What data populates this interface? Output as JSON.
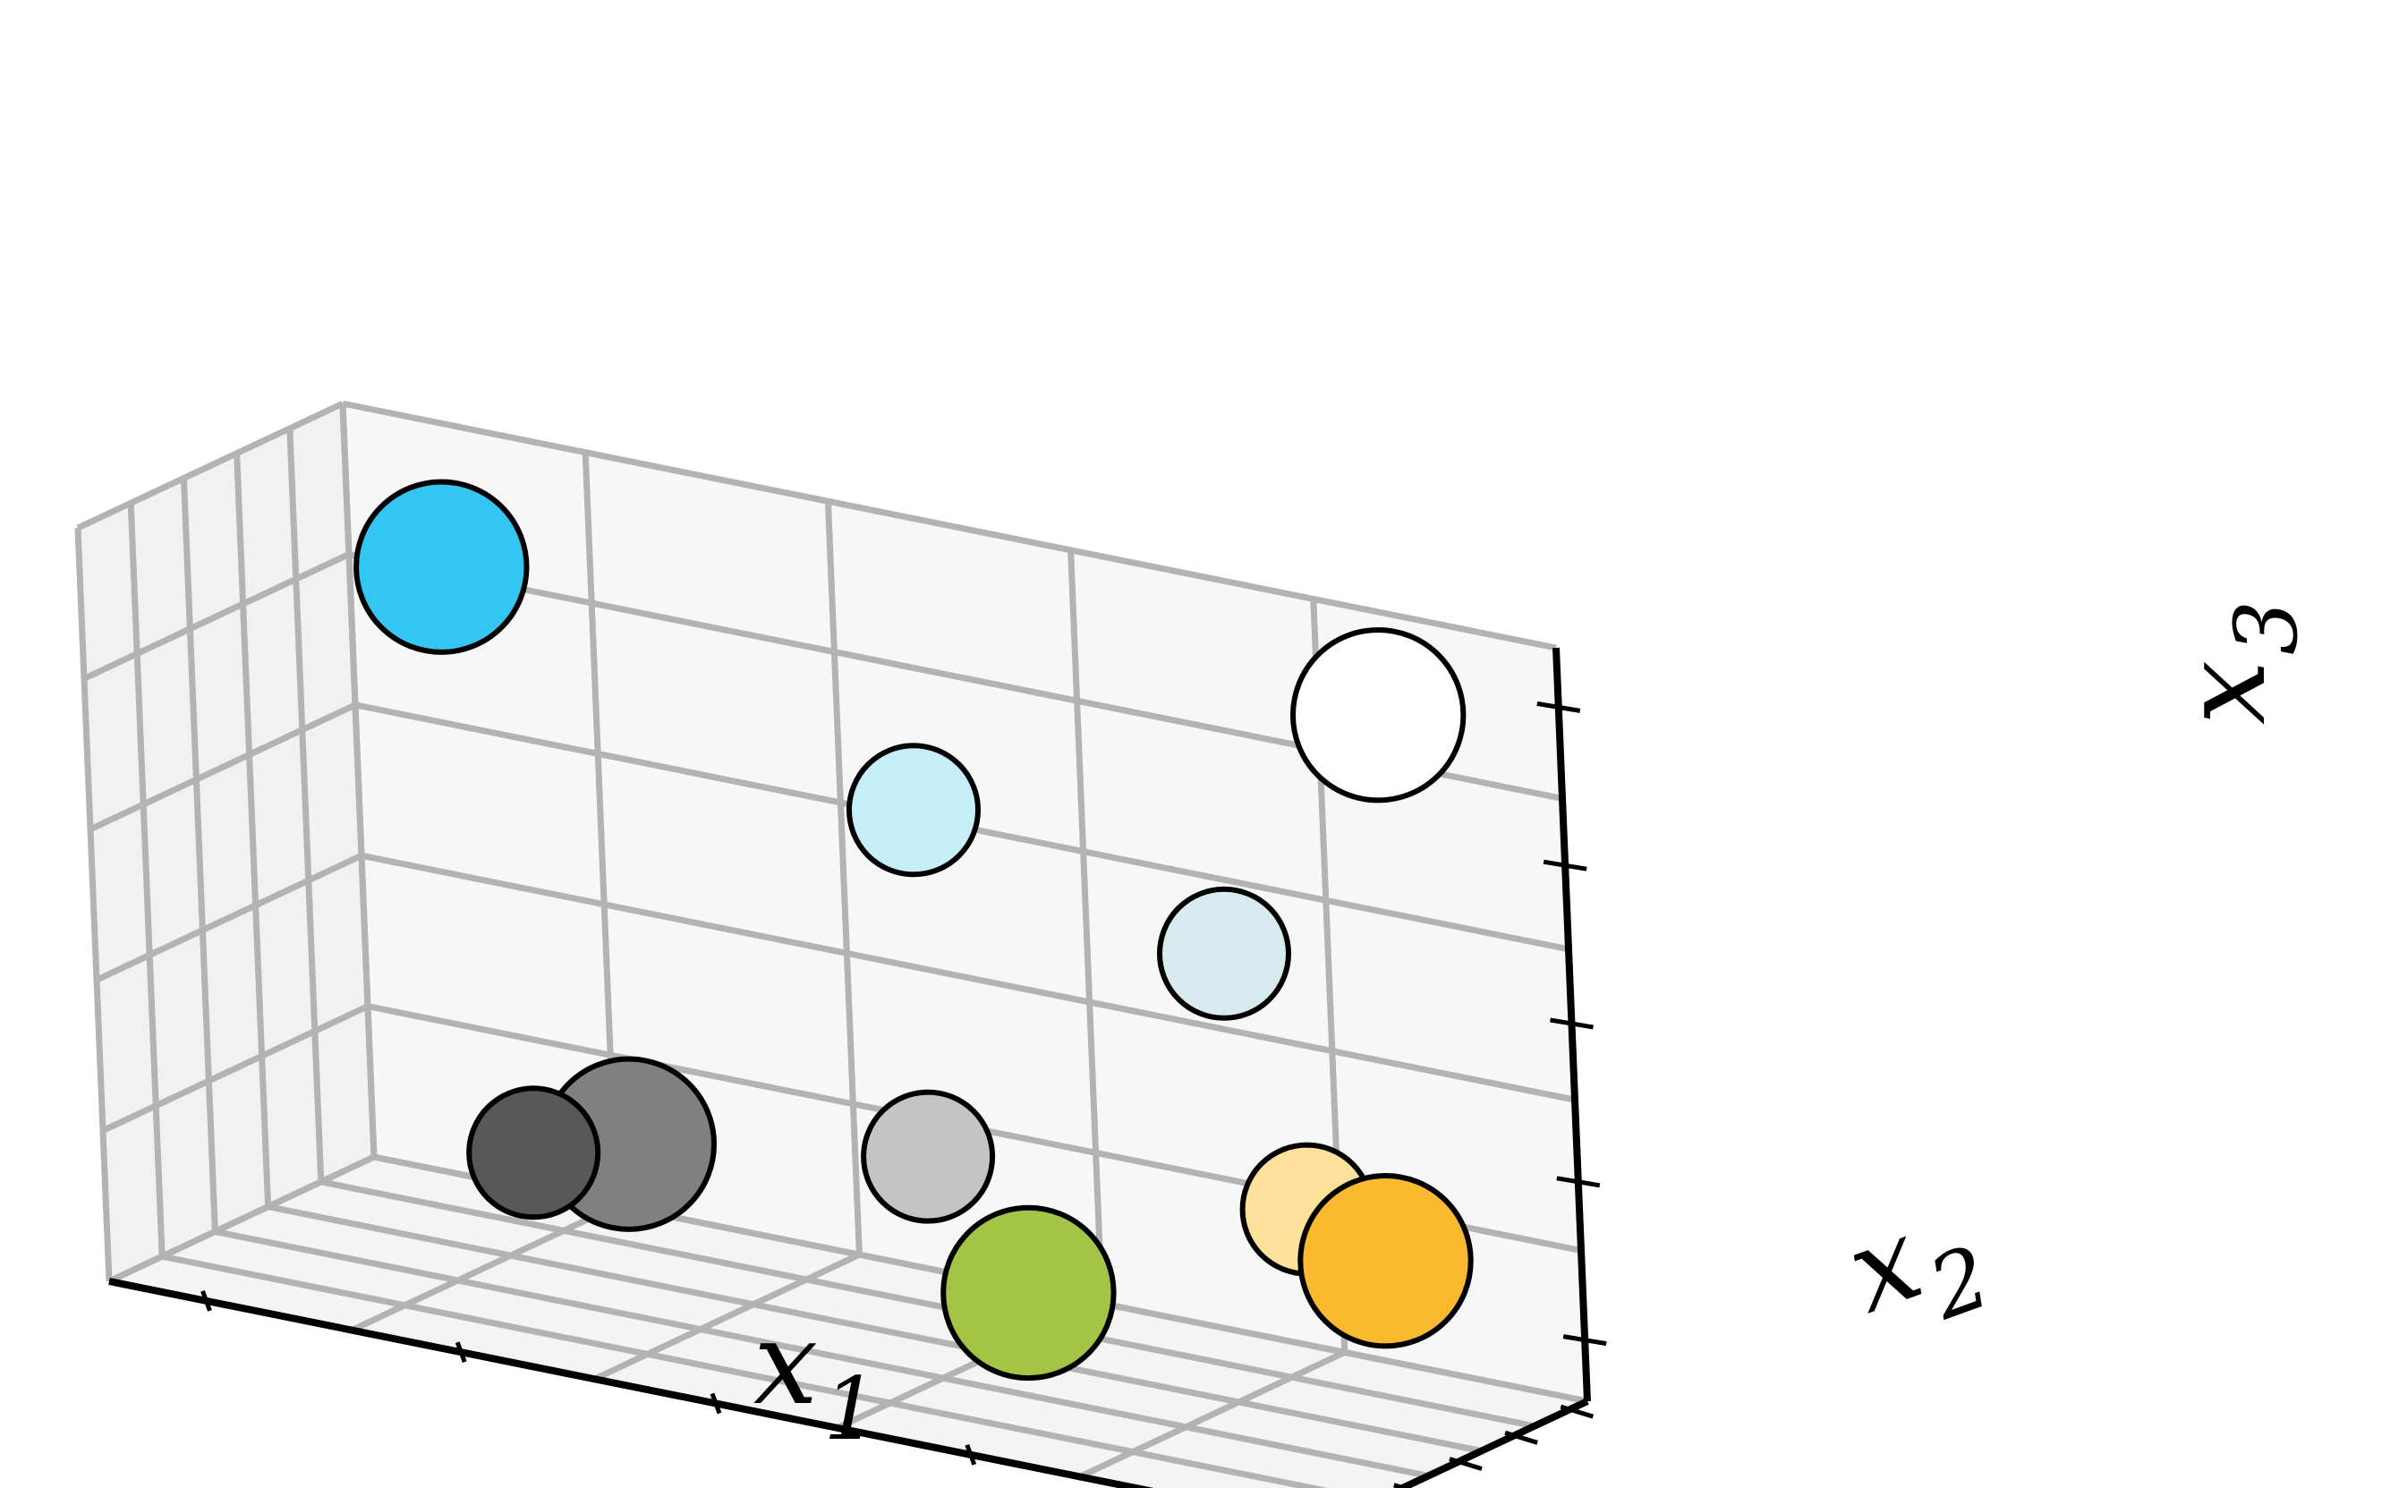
{
  "chart_data": {
    "type": "scatter",
    "projection": "3d",
    "xlabel": "x",
    "xlabel_sub": "1",
    "ylabel": "x",
    "ylabel_sub": "2",
    "zlabel": "x",
    "zlabel_sub": "3",
    "tick_labels_shown": false,
    "grid": true,
    "xlim": [
      0,
      5
    ],
    "ylim": [
      0,
      5
    ],
    "zlim": [
      0,
      5
    ],
    "points": [
      {
        "x": 1.0,
        "y": 1.5,
        "z": 0.6,
        "size": 0.4,
        "color": "#585858"
      },
      {
        "x": 1.1,
        "y": 3.2,
        "z": 4.8,
        "size": 0.46,
        "color": "#34c6f2"
      },
      {
        "x": 1.6,
        "y": 2.4,
        "z": 1.0,
        "size": 0.46,
        "color": "#808080"
      },
      {
        "x": 3.1,
        "y": 1.8,
        "z": 0.4,
        "size": 0.46,
        "color": "#a3c445"
      },
      {
        "x": 3.2,
        "y": 4.0,
        "z": 4.0,
        "size": 0.4,
        "color": "#c6eef9"
      },
      {
        "x": 3.2,
        "y": 4.0,
        "z": 1.7,
        "size": 0.4,
        "color": "#c4c4c4"
      },
      {
        "x": 4.6,
        "y": 4.6,
        "z": 3.6,
        "size": 0.4,
        "color": "#d7eaee"
      },
      {
        "x": 4.9,
        "y": 4.6,
        "z": 2.0,
        "size": 0.4,
        "color": "#fde19b"
      },
      {
        "x": 4.5,
        "y": 1.4,
        "z": 1.0,
        "size": 0.46,
        "color": "#fbb930"
      },
      {
        "x": 4.9,
        "y": 2.9,
        "z": 5.0,
        "size": 0.46,
        "color": "#ffffff"
      }
    ]
  }
}
